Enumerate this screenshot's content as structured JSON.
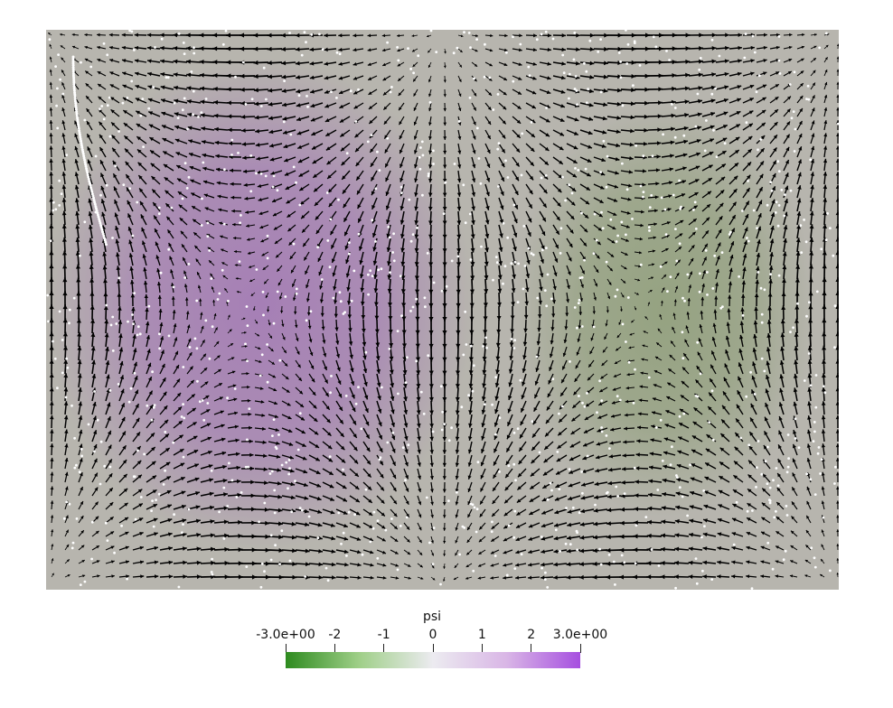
{
  "chart_data": {
    "type": "heatmap",
    "description_kind": "vector-field",
    "scalar_name": "psi",
    "colorbar": {
      "title": "psi",
      "min": -3.0,
      "max": 3.0,
      "tick_values": [
        -3,
        -2,
        -1,
        0,
        1,
        2,
        3
      ],
      "tick_labels": [
        "-3.0e+00",
        "-2",
        "-1",
        "0",
        "1",
        "2",
        "3.0e+00"
      ],
      "colors": [
        "#2e8b1f",
        "#9fcf88",
        "#ecebf0",
        "#d9b6e6",
        "#a64fe0"
      ]
    },
    "field": {
      "background_color": "#b7b5ae",
      "vortices": [
        {
          "name": "left",
          "center": [
            0.27,
            0.49
          ],
          "psi": 1.6,
          "rotation": "counterclockwise"
        },
        {
          "name": "right",
          "center": [
            0.78,
            0.5
          ],
          "psi": -0.7,
          "rotation": "clockwise"
        }
      ],
      "arrow_color": "#000000",
      "particle_color": "#ffffff"
    }
  }
}
